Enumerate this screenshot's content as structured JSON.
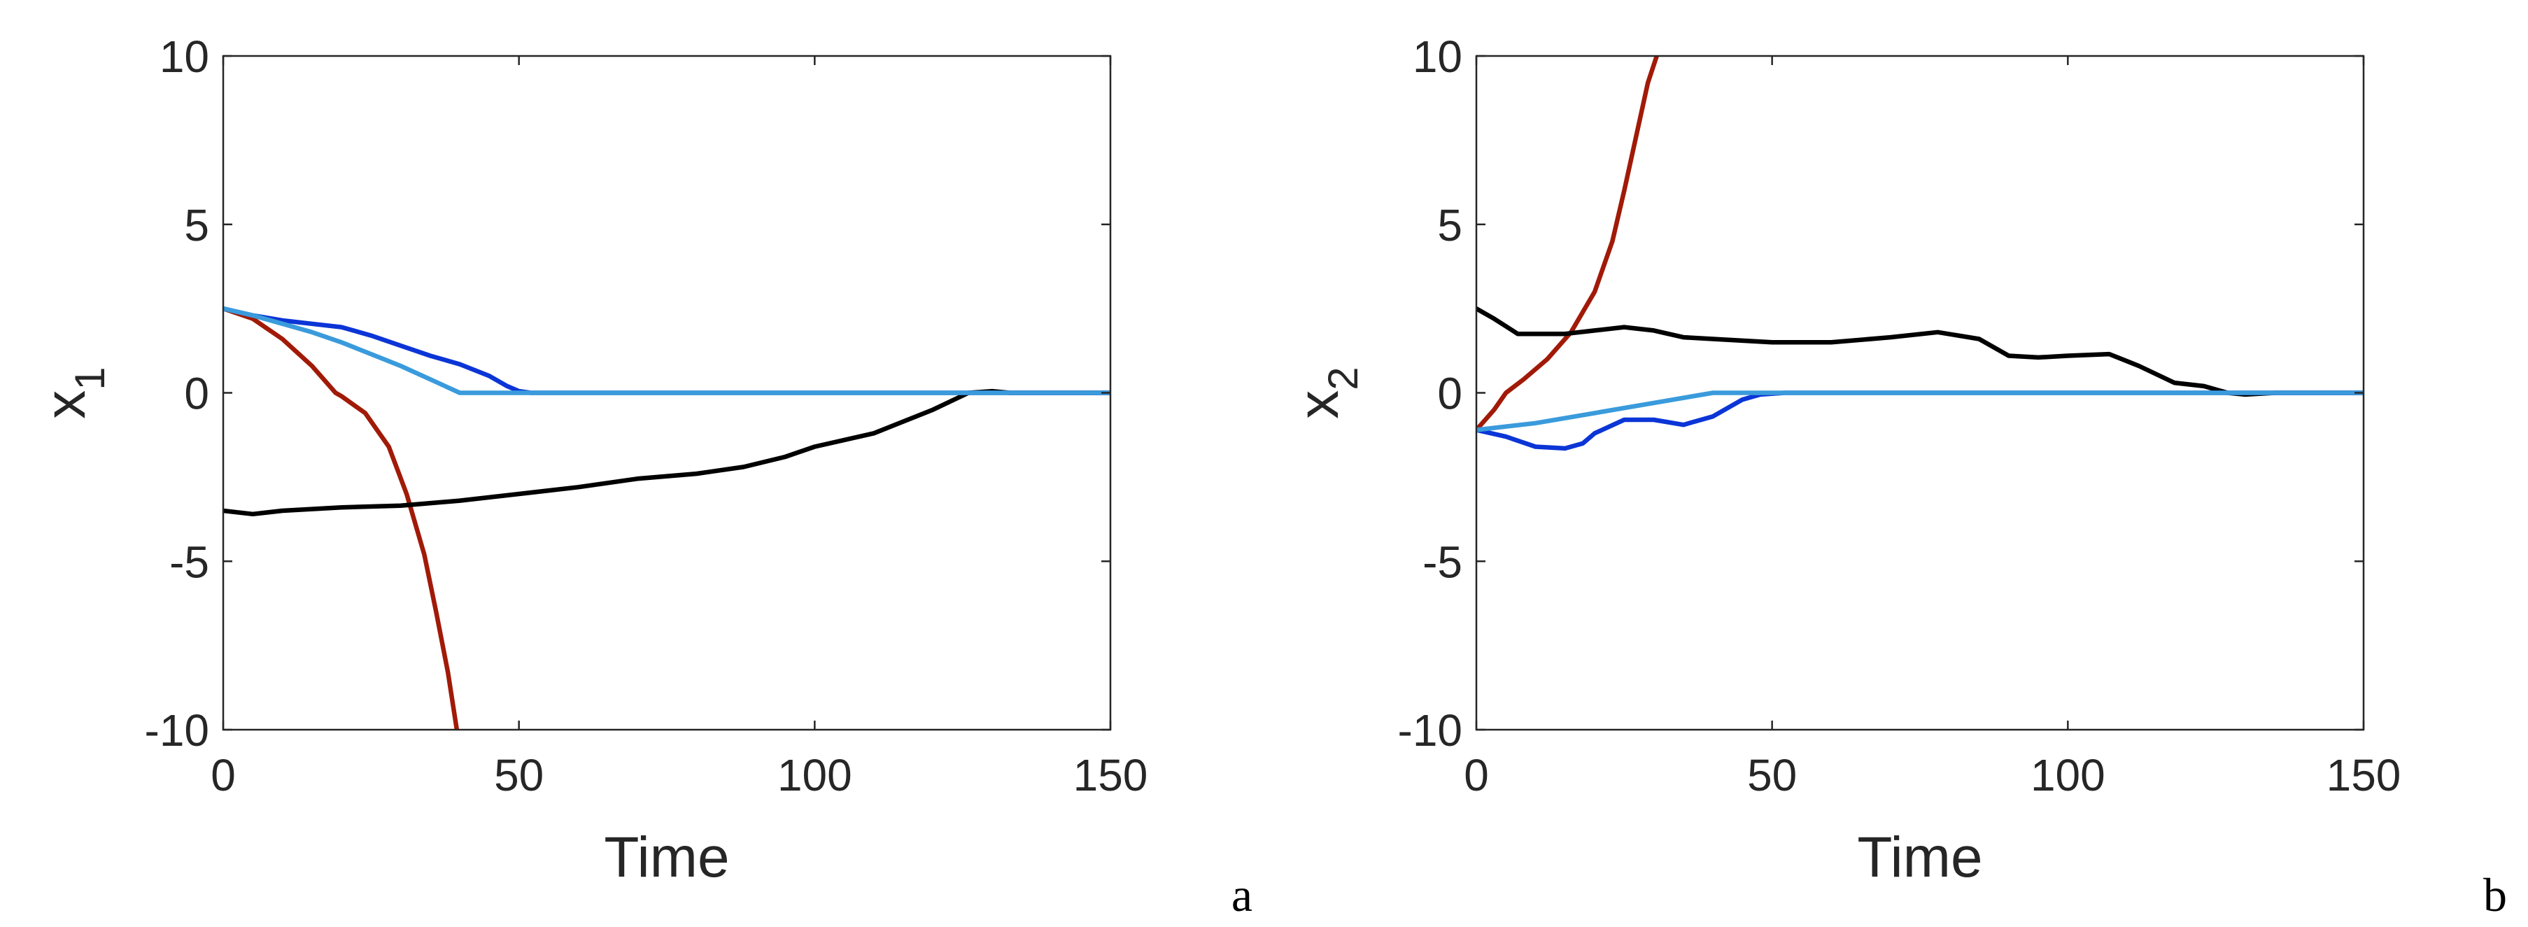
{
  "chart_data": [
    {
      "type": "line",
      "panel_label": "a",
      "xlabel": "Time",
      "ylabel": "x",
      "ylabel_sub": "1",
      "xlim": [
        0,
        150
      ],
      "ylim": [
        -10,
        10
      ],
      "xticks": [
        0,
        50,
        100,
        150
      ],
      "yticks": [
        -10,
        -5,
        0,
        5,
        10
      ],
      "xtick_labels": [
        "0",
        "50",
        "100",
        "150"
      ],
      "ytick_labels": [
        "-10",
        "-5",
        "0",
        "5",
        "10"
      ],
      "series": [
        {
          "name": "red",
          "color": "#a11a08",
          "x": [
            0,
            5,
            10,
            15,
            19,
            20,
            24,
            28,
            31,
            34,
            36,
            38,
            39.5
          ],
          "y": [
            2.5,
            2.2,
            1.6,
            0.8,
            0.0,
            -0.1,
            -0.6,
            -1.6,
            -3.0,
            -4.8,
            -6.5,
            -8.3,
            -10
          ]
        },
        {
          "name": "black",
          "color": "#000000",
          "x": [
            0,
            5,
            10,
            20,
            30,
            40,
            50,
            60,
            70,
            80,
            88,
            95,
            100,
            110,
            120,
            126,
            130,
            133,
            150
          ],
          "y": [
            -3.5,
            -3.6,
            -3.5,
            -3.4,
            -3.35,
            -3.2,
            -3.0,
            -2.8,
            -2.55,
            -2.4,
            -2.2,
            -1.9,
            -1.6,
            -1.2,
            -0.5,
            0.0,
            0.05,
            0.0,
            0.0
          ]
        },
        {
          "name": "blue",
          "color": "#0b35d6",
          "x": [
            0,
            5,
            10,
            15,
            20,
            25,
            30,
            35,
            40,
            45,
            48,
            50,
            52,
            60,
            150
          ],
          "y": [
            2.5,
            2.3,
            2.15,
            2.05,
            1.95,
            1.7,
            1.4,
            1.1,
            0.85,
            0.5,
            0.2,
            0.05,
            0.0,
            0.0,
            0.0
          ]
        },
        {
          "name": "light-blue",
          "color": "#3a9bdc",
          "x": [
            0,
            5,
            10,
            15,
            20,
            25,
            30,
            35,
            40,
            150
          ],
          "y": [
            2.5,
            2.3,
            2.05,
            1.8,
            1.5,
            1.15,
            0.8,
            0.4,
            0.0,
            0.0
          ]
        }
      ]
    },
    {
      "type": "line",
      "panel_label": "b",
      "xlabel": "Time",
      "ylabel": "x",
      "ylabel_sub": "2",
      "xlim": [
        0,
        150
      ],
      "ylim": [
        -10,
        10
      ],
      "xticks": [
        0,
        50,
        100,
        150
      ],
      "yticks": [
        -10,
        -5,
        0,
        5,
        10
      ],
      "xtick_labels": [
        "0",
        "50",
        "100",
        "150"
      ],
      "ytick_labels": [
        "-10",
        "-5",
        "0",
        "5",
        "10"
      ],
      "series": [
        {
          "name": "red",
          "color": "#a11a08",
          "x": [
            0,
            3,
            5,
            8,
            12,
            16,
            20,
            23,
            25,
            27,
            29,
            30.5
          ],
          "y": [
            -1.1,
            -0.5,
            0.0,
            0.4,
            1.0,
            1.8,
            3.0,
            4.5,
            6.0,
            7.6,
            9.2,
            10
          ]
        },
        {
          "name": "black",
          "color": "#000000",
          "x": [
            0,
            3,
            7,
            10,
            15,
            20,
            25,
            30,
            35,
            40,
            50,
            60,
            70,
            78,
            85,
            90,
            95,
            100,
            107,
            112,
            118,
            123,
            127,
            130,
            135,
            150
          ],
          "y": [
            2.5,
            2.2,
            1.75,
            1.75,
            1.75,
            1.85,
            1.95,
            1.85,
            1.65,
            1.6,
            1.5,
            1.5,
            1.65,
            1.8,
            1.6,
            1.1,
            1.05,
            1.1,
            1.15,
            0.8,
            0.3,
            0.2,
            0.0,
            -0.05,
            0.0,
            0.0
          ]
        },
        {
          "name": "blue",
          "color": "#0b35d6",
          "x": [
            0,
            5,
            10,
            15,
            18,
            20,
            25,
            30,
            35,
            40,
            45,
            48,
            52,
            60,
            150
          ],
          "y": [
            -1.1,
            -1.3,
            -1.6,
            -1.65,
            -1.5,
            -1.2,
            -0.8,
            -0.8,
            -0.95,
            -0.7,
            -0.2,
            -0.05,
            0.0,
            0.0,
            0.0
          ]
        },
        {
          "name": "light-blue",
          "color": "#3a9bdc",
          "x": [
            0,
            10,
            20,
            30,
            40,
            150
          ],
          "y": [
            -1.1,
            -0.9,
            -0.6,
            -0.3,
            0.0,
            0.0
          ]
        }
      ]
    }
  ]
}
